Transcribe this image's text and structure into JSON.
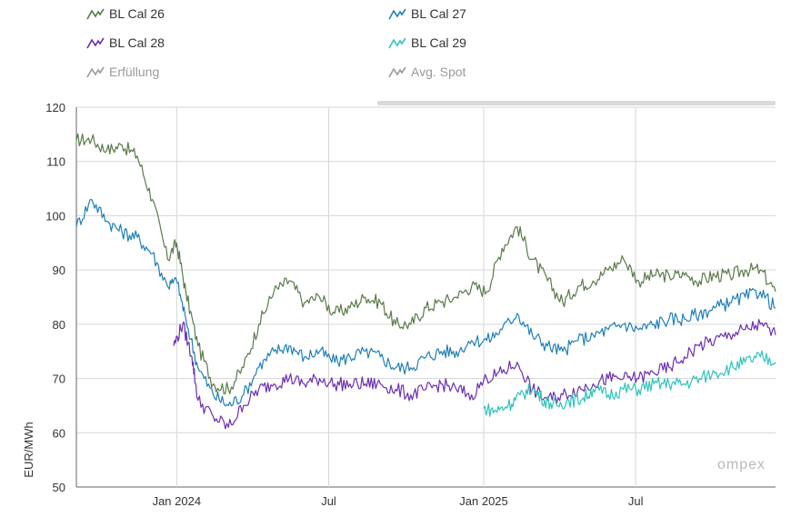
{
  "legend": [
    {
      "name": "BL Cal 26",
      "color": "#5a7a4a",
      "icon": "line-chart-icon",
      "active": true
    },
    {
      "name": "BL Cal 27",
      "color": "#1f7fb8",
      "icon": "line-chart-icon",
      "active": true
    },
    {
      "name": "BL Cal 28",
      "color": "#6b2fb0",
      "icon": "line-chart-icon",
      "active": true
    },
    {
      "name": "BL Cal 29",
      "color": "#2ec4bb",
      "icon": "line-chart-icon",
      "active": true
    },
    {
      "name": "Erfüllung",
      "color": "#9a9a9a",
      "icon": "line-chart-icon",
      "active": false
    },
    {
      "name": "Avg. Spot",
      "color": "#9a9a9a",
      "icon": "line-chart-icon",
      "active": false
    }
  ],
  "watermark": "ompex",
  "chart_data": {
    "type": "line",
    "title": "",
    "xlabel": "",
    "ylabel": "EUR/MWh",
    "ylim": [
      50,
      120
    ],
    "yticks": [
      50,
      60,
      70,
      80,
      90,
      100,
      110,
      120
    ],
    "xlim": [
      0,
      23
    ],
    "x_ticks": [
      {
        "value": 3.3,
        "label": "Jan 2024"
      },
      {
        "value": 8.3,
        "label": "Jul"
      },
      {
        "value": 13.4,
        "label": "Jan 2025"
      },
      {
        "value": 18.4,
        "label": "Jul"
      }
    ],
    "x_unit": "months since Oct 2023",
    "grid": true,
    "series": [
      {
        "name": "BL Cal 26",
        "color": "#5a7a4a",
        "x": [
          0,
          0.5,
          1,
          1.5,
          2,
          2.5,
          3,
          3.3,
          3.6,
          4,
          4.5,
          5,
          5.5,
          6,
          6.5,
          7,
          7.5,
          8,
          8.5,
          9,
          9.5,
          10,
          10.5,
          11,
          11.5,
          12,
          12.5,
          13,
          13.5,
          14,
          14.5,
          15,
          15.5,
          16,
          16.5,
          17,
          17.5,
          18,
          18.5,
          19,
          19.5,
          20,
          20.5,
          21,
          21.5,
          22,
          22.5,
          23
        ],
        "values": [
          114,
          114,
          112,
          113,
          111,
          103,
          92,
          95,
          86,
          76,
          69,
          68,
          72,
          80,
          86,
          88,
          84,
          85,
          82,
          83,
          85,
          84,
          80,
          80,
          83,
          84,
          85,
          87,
          86,
          94,
          98,
          92,
          88,
          84,
          87,
          88,
          90,
          92,
          88,
          89,
          89,
          89,
          88,
          89,
          89,
          90,
          90,
          86
        ]
      },
      {
        "name": "BL Cal 27",
        "color": "#1f7fb8",
        "x": [
          0,
          0.5,
          1,
          1.5,
          2,
          2.5,
          3,
          3.3,
          3.6,
          4,
          4.5,
          5,
          5.5,
          6,
          6.5,
          7,
          7.5,
          8,
          8.5,
          9,
          9.5,
          10,
          10.5,
          11,
          11.5,
          12,
          12.5,
          13,
          13.5,
          14,
          14.5,
          15,
          15.5,
          16,
          16.5,
          17,
          17.5,
          18,
          18.5,
          19,
          19.5,
          20,
          20.5,
          21,
          21.5,
          22,
          22.5,
          23
        ],
        "values": [
          98,
          103,
          99,
          97,
          96,
          93,
          87,
          88,
          81,
          72,
          67,
          65,
          67,
          72,
          75,
          76,
          74,
          75,
          73,
          74,
          75,
          74,
          72,
          72,
          74,
          75,
          75,
          77,
          77,
          79,
          82,
          78,
          76,
          75,
          77,
          78,
          79,
          80,
          79,
          80,
          81,
          81,
          82,
          83,
          84,
          85,
          86,
          83
        ]
      },
      {
        "name": "BL Cal 28",
        "color": "#6b2fb0",
        "x": [
          3.2,
          3.5,
          3.8,
          4,
          4.5,
          5,
          5.5,
          6,
          6.5,
          7,
          7.5,
          8,
          8.5,
          9,
          9.5,
          10,
          10.5,
          11,
          11.5,
          12,
          12.5,
          13,
          13.5,
          14,
          14.5,
          15,
          15.5,
          16,
          16.5,
          17,
          17.5,
          18,
          18.5,
          19,
          19.5,
          20,
          20.5,
          21,
          21.5,
          22,
          22.5,
          23
        ],
        "values": [
          76,
          80,
          74,
          66,
          63,
          61,
          65,
          68,
          69,
          70,
          69,
          70,
          69,
          69,
          69,
          69,
          68,
          67,
          68,
          69,
          68,
          67,
          70,
          71,
          73,
          68,
          66,
          67,
          68,
          69,
          70,
          70,
          70,
          71,
          72,
          74,
          76,
          77,
          78,
          79,
          80,
          78
        ]
      },
      {
        "name": "BL Cal 29",
        "color": "#2ec4bb",
        "x": [
          13.4,
          13.8,
          14.2,
          14.6,
          15,
          15.4,
          15.8,
          16.2,
          16.6,
          17,
          17.5,
          18,
          18.5,
          19,
          19.5,
          20,
          20.5,
          21,
          21.5,
          22,
          22.5,
          23
        ],
        "values": [
          64.5,
          64,
          65,
          67,
          68,
          66,
          65,
          66,
          66,
          68,
          67,
          68,
          68,
          69,
          69,
          69,
          70,
          71,
          72,
          73,
          74,
          73
        ]
      }
    ]
  }
}
